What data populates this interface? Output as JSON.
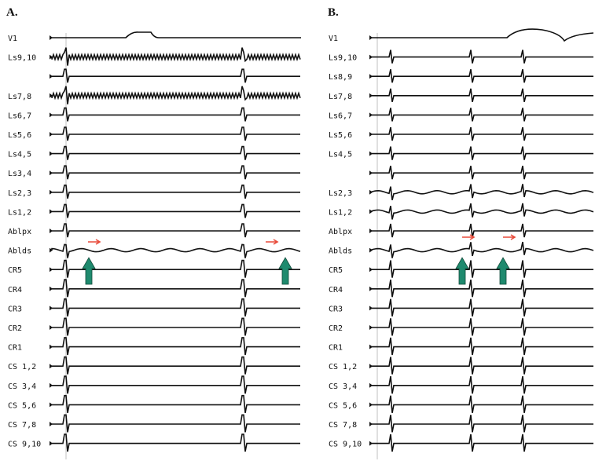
{
  "panels": [
    {
      "label": "A.",
      "channels": [
        "V1",
        "Ls9,10",
        "",
        "Ls7,8",
        "Ls6,7",
        "Ls5,6",
        "Ls4,5",
        "Ls3,4",
        "Ls2,3",
        "Ls1,2",
        "Ablpx",
        "Ablds",
        "CR5",
        "CR4",
        "CR3",
        "CR2",
        "CR1",
        "CS 1,2",
        "CS 3,4",
        "CS 5,6",
        "CS 7,8",
        "CS 9,10"
      ]
    },
    {
      "label": "B.",
      "channels": [
        "V1",
        "Ls9,10",
        "Ls8,9",
        "Ls7,8",
        "Ls6,7",
        "Ls5,6",
        "Ls4,5",
        "",
        "Ls2,3",
        "Ls1,2",
        "Ablpx",
        "Ablds",
        "CR5",
        "CR4",
        "CR3",
        "CR2",
        "CR1",
        "CS 1,2",
        "CS 3,4",
        "CS 5,6",
        "CS 7,8",
        "CS 9,10"
      ]
    }
  ],
  "colors": {
    "trace": "#111111",
    "green_arrow": "#1f8a6e",
    "red_arrow": "#e84a3a"
  },
  "icons": [
    "green-up-arrow-icon",
    "red-right-arrow-icon"
  ]
}
